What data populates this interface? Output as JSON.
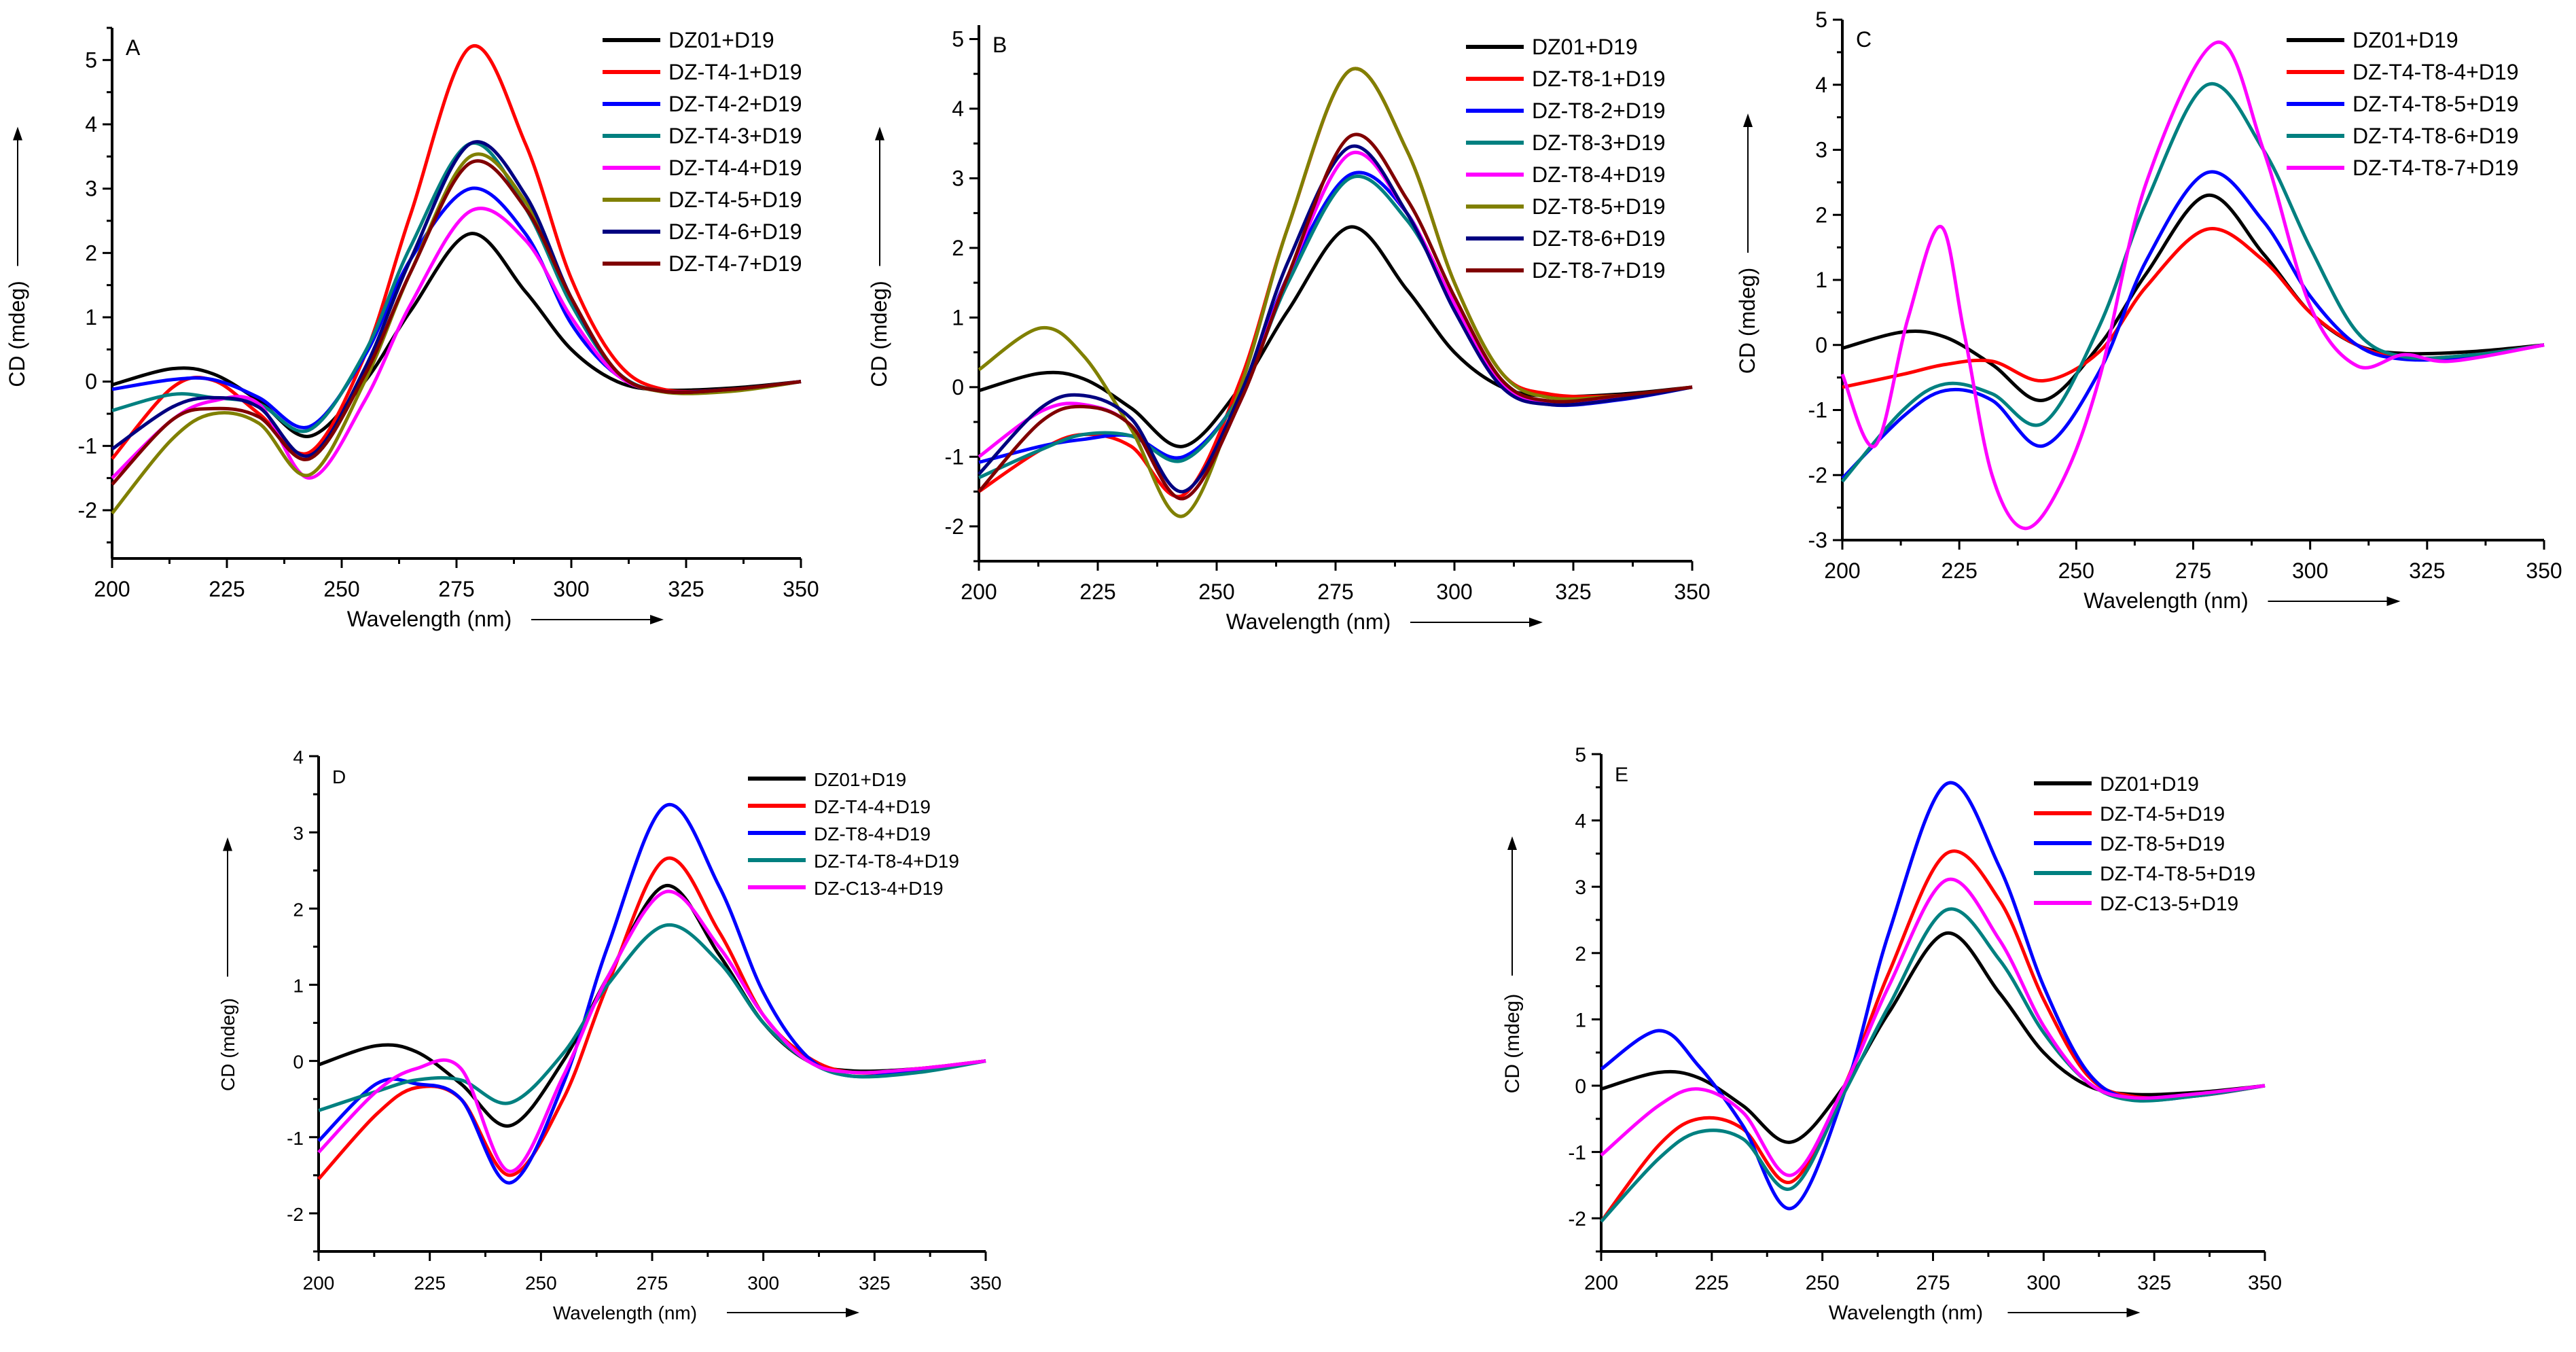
{
  "chart_data": [
    {
      "type": "line",
      "panel_label": "A",
      "xlabel": "Wavelength (nm)",
      "ylabel": "CD (mdeg)",
      "xlim": [
        200,
        350
      ],
      "ylim": [
        -2.75,
        5.5
      ],
      "xticks": [
        "200",
        "225",
        "250",
        "275",
        "300",
        "325",
        "350"
      ],
      "yticks": [
        "-2",
        "-1",
        "0",
        "1",
        "2",
        "3",
        "4",
        "5"
      ],
      "legend_position": "top-right",
      "x": [
        200,
        213,
        222,
        232,
        243,
        255,
        265,
        278,
        290,
        300,
        310,
        320,
        335,
        350
      ],
      "series": [
        {
          "name": "DZ01+D19",
          "color": "#000000",
          "values": [
            -0.05,
            0.2,
            0.12,
            -0.3,
            -0.85,
            0.0,
            1.1,
            2.3,
            1.4,
            0.5,
            0.0,
            -0.13,
            -0.1,
            0
          ]
        },
        {
          "name": "DZ-T4-1+D19",
          "color": "#ff0000",
          "values": [
            -1.2,
            -0.1,
            0.02,
            -0.5,
            -1.1,
            0.4,
            2.6,
            5.2,
            3.7,
            1.6,
            0.3,
            -0.12,
            -0.12,
            0
          ]
        },
        {
          "name": "DZ-T4-2+D19",
          "color": "#0000ff",
          "values": [
            -0.12,
            0.03,
            0.03,
            -0.25,
            -0.7,
            0.4,
            1.9,
            3.0,
            2.3,
            0.9,
            0.1,
            -0.15,
            -0.12,
            0
          ]
        },
        {
          "name": "DZ-T4-3+D19",
          "color": "#008080",
          "values": [
            -0.45,
            -0.2,
            -0.25,
            -0.35,
            -0.75,
            0.45,
            2.1,
            3.7,
            2.7,
            1.2,
            0.15,
            -0.15,
            -0.14,
            0
          ]
        },
        {
          "name": "DZ-T4-4+D19",
          "color": "#ff00ff",
          "values": [
            -1.5,
            -0.6,
            -0.3,
            -0.35,
            -1.5,
            -0.3,
            1.2,
            2.65,
            2.2,
            1.0,
            0.1,
            -0.15,
            -0.14,
            0
          ]
        },
        {
          "name": "DZ-T4-5+D19",
          "color": "#808000",
          "values": [
            -2.05,
            -0.9,
            -0.5,
            -0.65,
            -1.45,
            0.0,
            1.7,
            3.5,
            2.8,
            1.3,
            0.15,
            -0.16,
            -0.15,
            0
          ]
        },
        {
          "name": "DZ-T4-6+D19",
          "color": "#000080",
          "values": [
            -1.05,
            -0.4,
            -0.25,
            -0.4,
            -1.15,
            0.2,
            1.9,
            3.7,
            2.9,
            1.3,
            0.15,
            -0.15,
            -0.12,
            0
          ]
        },
        {
          "name": "DZ-T4-7+D19",
          "color": "#800000",
          "values": [
            -1.6,
            -0.6,
            -0.42,
            -0.55,
            -1.2,
            0.1,
            1.7,
            3.4,
            2.7,
            1.3,
            0.15,
            -0.15,
            -0.12,
            0
          ]
        }
      ]
    },
    {
      "type": "line",
      "panel_label": "B",
      "xlabel": "Wavelength (nm)",
      "ylabel": "CD (mdeg)",
      "xlim": [
        200,
        350
      ],
      "ylim": [
        -2.5,
        5.2
      ],
      "xticks": [
        "200",
        "225",
        "250",
        "275",
        "300",
        "325",
        "350"
      ],
      "yticks": [
        "-2",
        "-1",
        "0",
        "1",
        "2",
        "3",
        "4",
        "5"
      ],
      "legend_position": "top-right",
      "x": [
        200,
        213,
        222,
        232,
        243,
        255,
        265,
        278,
        290,
        300,
        310,
        320,
        335,
        350
      ],
      "series": [
        {
          "name": "DZ01+D19",
          "color": "#000000",
          "values": [
            -0.05,
            0.2,
            0.12,
            -0.3,
            -0.85,
            0.0,
            1.1,
            2.3,
            1.4,
            0.5,
            0.0,
            -0.13,
            -0.1,
            0
          ]
        },
        {
          "name": "DZ-T8-1+D19",
          "color": "#ff0000",
          "values": [
            -1.5,
            -0.9,
            -0.68,
            -0.85,
            -1.55,
            0.1,
            2.3,
            4.55,
            3.4,
            1.5,
            0.2,
            -0.1,
            -0.12,
            0
          ]
        },
        {
          "name": "DZ-T8-2+D19",
          "color": "#0000ff",
          "values": [
            -1.08,
            -0.85,
            -0.75,
            -0.7,
            -1.0,
            -0.1,
            1.6,
            3.05,
            2.5,
            1.1,
            0.05,
            -0.25,
            -0.18,
            0
          ]
        },
        {
          "name": "DZ-T8-3+D19",
          "color": "#008080",
          "values": [
            -1.3,
            -0.9,
            -0.68,
            -0.7,
            -1.05,
            -0.1,
            1.5,
            3.0,
            2.4,
            1.2,
            0.1,
            -0.22,
            -0.16,
            0
          ]
        },
        {
          "name": "DZ-T8-4+D19",
          "color": "#ff00ff",
          "values": [
            -1.0,
            -0.35,
            -0.25,
            -0.55,
            -1.6,
            -0.2,
            1.6,
            3.35,
            2.5,
            1.2,
            0.05,
            -0.22,
            -0.15,
            0
          ]
        },
        {
          "name": "DZ-T8-5+D19",
          "color": "#808000",
          "values": [
            0.25,
            0.85,
            0.45,
            -0.6,
            -1.85,
            0.0,
            2.3,
            4.55,
            3.4,
            1.5,
            0.2,
            -0.15,
            -0.12,
            0
          ]
        },
        {
          "name": "DZ-T8-6+D19",
          "color": "#000080",
          "values": [
            -1.25,
            -0.3,
            -0.12,
            -0.45,
            -1.5,
            -0.1,
            1.8,
            3.45,
            2.5,
            1.1,
            0.0,
            -0.25,
            -0.17,
            0
          ]
        },
        {
          "name": "DZ-T8-7+D19",
          "color": "#800000",
          "values": [
            -1.5,
            -0.5,
            -0.28,
            -0.55,
            -1.6,
            -0.2,
            1.6,
            3.6,
            2.7,
            1.3,
            0.1,
            -0.2,
            -0.12,
            0
          ]
        }
      ]
    },
    {
      "type": "line",
      "panel_label": "C",
      "xlabel": "Wavelength (nm)",
      "ylabel": "CD (mdeg)",
      "xlim": [
        200,
        350
      ],
      "ylim": [
        -3,
        5
      ],
      "xticks": [
        "200",
        "225",
        "250",
        "275",
        "300",
        "325",
        "350"
      ],
      "yticks": [
        "-3",
        "-2",
        "-1",
        "0",
        "1",
        "2",
        "3",
        "4",
        "5"
      ],
      "legend_position": "top-right",
      "x": [
        200,
        213,
        222,
        232,
        243,
        255,
        265,
        278,
        290,
        300,
        310,
        320,
        335,
        350
      ],
      "series": [
        {
          "name": "DZ01+D19",
          "color": "#000000",
          "values": [
            -0.05,
            0.2,
            0.12,
            -0.3,
            -0.85,
            0.0,
            1.1,
            2.3,
            1.4,
            0.5,
            0.0,
            -0.13,
            -0.1,
            0
          ]
        },
        {
          "name": "DZ-T4-T8-4+D19",
          "color": "#ff0000",
          "values": [
            -0.65,
            -0.45,
            -0.3,
            -0.25,
            -0.55,
            -0.1,
            0.9,
            1.78,
            1.3,
            0.5,
            0.0,
            -0.2,
            -0.15,
            0
          ]
        },
        {
          "name": "DZ-T4-T8-5+D19",
          "color": "#0000ff",
          "values": [
            -2.05,
            -1.1,
            -0.7,
            -0.85,
            -1.55,
            -0.4,
            1.3,
            2.65,
            1.9,
            0.75,
            0.0,
            -0.22,
            -0.18,
            0
          ]
        },
        {
          "name": "DZ-T4-T8-6+D19",
          "color": "#008080",
          "values": [
            -2.1,
            -1.0,
            -0.6,
            -0.75,
            -1.2,
            0.3,
            2.2,
            4.0,
            3.0,
            1.5,
            0.2,
            -0.18,
            -0.15,
            0
          ]
        },
        {
          "name": "DZ-T4-T8-7+D19",
          "color": "#ff00ff",
          "x": [
            200,
            207,
            214,
            221,
            226,
            232,
            239,
            247,
            255,
            265,
            280,
            290,
            300,
            310,
            320,
            330,
            350
          ],
          "values": [
            -0.45,
            -1.55,
            0.4,
            1.82,
            0.2,
            -2.0,
            -2.82,
            -2.1,
            -0.5,
            2.5,
            4.65,
            3.0,
            0.6,
            -0.32,
            -0.15,
            -0.25,
            0
          ]
        }
      ]
    },
    {
      "type": "line",
      "panel_label": "D",
      "xlabel": "Wavelength (nm)",
      "ylabel": "CD (mdeg)",
      "xlim": [
        200,
        350
      ],
      "ylim": [
        -2.5,
        4
      ],
      "xticks": [
        "200",
        "225",
        "250",
        "275",
        "300",
        "325",
        "350"
      ],
      "yticks": [
        "-2",
        "-1",
        "0",
        "1",
        "2",
        "3",
        "4"
      ],
      "legend_position": "top-right",
      "x": [
        200,
        213,
        222,
        232,
        243,
        255,
        265,
        278,
        290,
        300,
        310,
        320,
        335,
        350
      ],
      "series": [
        {
          "name": "DZ01+D19",
          "color": "#000000",
          "values": [
            -0.05,
            0.2,
            0.12,
            -0.3,
            -0.85,
            0.0,
            1.1,
            2.3,
            1.4,
            0.5,
            0.0,
            -0.13,
            -0.1,
            0
          ]
        },
        {
          "name": "DZ-T4-4+D19",
          "color": "#ff0000",
          "values": [
            -1.55,
            -0.7,
            -0.35,
            -0.5,
            -1.5,
            -0.5,
            1.0,
            2.65,
            1.7,
            0.6,
            0.05,
            -0.15,
            -0.1,
            0
          ]
        },
        {
          "name": "DZ-T8-4+D19",
          "color": "#0000ff",
          "values": [
            -1.05,
            -0.3,
            -0.3,
            -0.5,
            -1.6,
            -0.3,
            1.5,
            3.35,
            2.3,
            0.9,
            0.05,
            -0.2,
            -0.12,
            0
          ]
        },
        {
          "name": "DZ-T4-T8-4+D19",
          "color": "#008080",
          "values": [
            -0.65,
            -0.4,
            -0.25,
            -0.25,
            -0.55,
            0.1,
            1.0,
            1.78,
            1.3,
            0.5,
            0.0,
            -0.2,
            -0.15,
            0
          ]
        },
        {
          "name": "DZ-C13-4+D19",
          "color": "#ff00ff",
          "values": [
            -1.2,
            -0.4,
            -0.1,
            -0.1,
            -1.45,
            -0.2,
            1.1,
            2.22,
            1.5,
            0.6,
            0.0,
            -0.15,
            -0.1,
            0
          ]
        }
      ]
    },
    {
      "type": "line",
      "panel_label": "E",
      "xlabel": "Wavelength (nm)",
      "ylabel": "CD (mdeg)",
      "xlim": [
        200,
        350
      ],
      "ylim": [
        -2.5,
        5
      ],
      "xticks": [
        "200",
        "225",
        "250",
        "275",
        "300",
        "325",
        "350"
      ],
      "yticks": [
        "-2",
        "-1",
        "0",
        "1",
        "2",
        "3",
        "4",
        "5"
      ],
      "legend_position": "top-right",
      "x": [
        200,
        213,
        222,
        232,
        243,
        255,
        265,
        278,
        290,
        300,
        310,
        320,
        335,
        350
      ],
      "series": [
        {
          "name": "DZ01+D19",
          "color": "#000000",
          "values": [
            -0.05,
            0.2,
            0.12,
            -0.3,
            -0.85,
            0.0,
            1.1,
            2.3,
            1.4,
            0.5,
            0.0,
            -0.13,
            -0.1,
            0
          ]
        },
        {
          "name": "DZ-T4-5+D19",
          "color": "#ff0000",
          "values": [
            -2.05,
            -0.9,
            -0.5,
            -0.65,
            -1.45,
            0.0,
            1.7,
            3.5,
            2.8,
            1.3,
            0.15,
            -0.16,
            -0.15,
            0
          ]
        },
        {
          "name": "DZ-T8-5+D19",
          "color": "#0000ff",
          "values": [
            0.25,
            0.83,
            0.3,
            -0.6,
            -1.85,
            -0.1,
            2.3,
            4.55,
            3.3,
            1.5,
            0.2,
            -0.2,
            -0.15,
            0
          ]
        },
        {
          "name": "DZ-T4-T8-5+D19",
          "color": "#008080",
          "values": [
            -2.05,
            -1.1,
            -0.7,
            -0.8,
            -1.55,
            -0.1,
            1.2,
            2.65,
            1.9,
            0.8,
            0.05,
            -0.22,
            -0.15,
            0
          ]
        },
        {
          "name": "DZ-C13-5+D19",
          "color": "#ff00ff",
          "values": [
            -1.05,
            -0.3,
            -0.05,
            -0.4,
            -1.35,
            0.0,
            1.5,
            3.1,
            2.2,
            0.9,
            0.05,
            -0.18,
            -0.12,
            0
          ]
        }
      ]
    }
  ]
}
